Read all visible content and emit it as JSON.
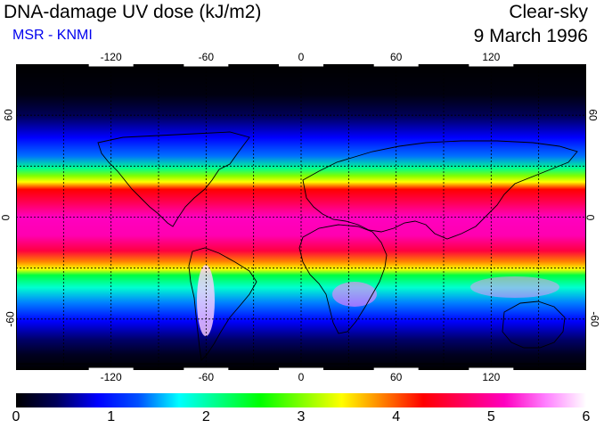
{
  "header": {
    "title": "DNA-damage UV dose (kJ/m2)",
    "subtitle": "MSR - KNMI",
    "condition": "Clear-sky",
    "date": "9 March 1996"
  },
  "map": {
    "projection": "equirectangular",
    "lon_range": [
      -180,
      180
    ],
    "lat_range": [
      -90,
      90
    ],
    "gridlines": "dashed",
    "lon_tick_labels": [
      "-120",
      "-60",
      "0",
      "60",
      "120"
    ],
    "lat_tick_labels": [
      "60",
      "0",
      "-60"
    ],
    "lon_ticks": [
      -120,
      -60,
      0,
      60,
      120
    ],
    "lat_ticks": [
      60,
      0,
      -60
    ],
    "coastlines": true
  },
  "colorbar": {
    "min": 0,
    "max": 6,
    "tick_labels": [
      "0",
      "1",
      "2",
      "3",
      "4",
      "5",
      "6"
    ],
    "colors": [
      "#000000",
      "#00005a",
      "#0000ff",
      "#0050ff",
      "#00ffff",
      "#00ff80",
      "#00ff00",
      "#80ff00",
      "#ffff00",
      "#ff8000",
      "#ff0000",
      "#ff0060",
      "#ff00c0",
      "#ff80ff",
      "#ffffff"
    ]
  }
}
